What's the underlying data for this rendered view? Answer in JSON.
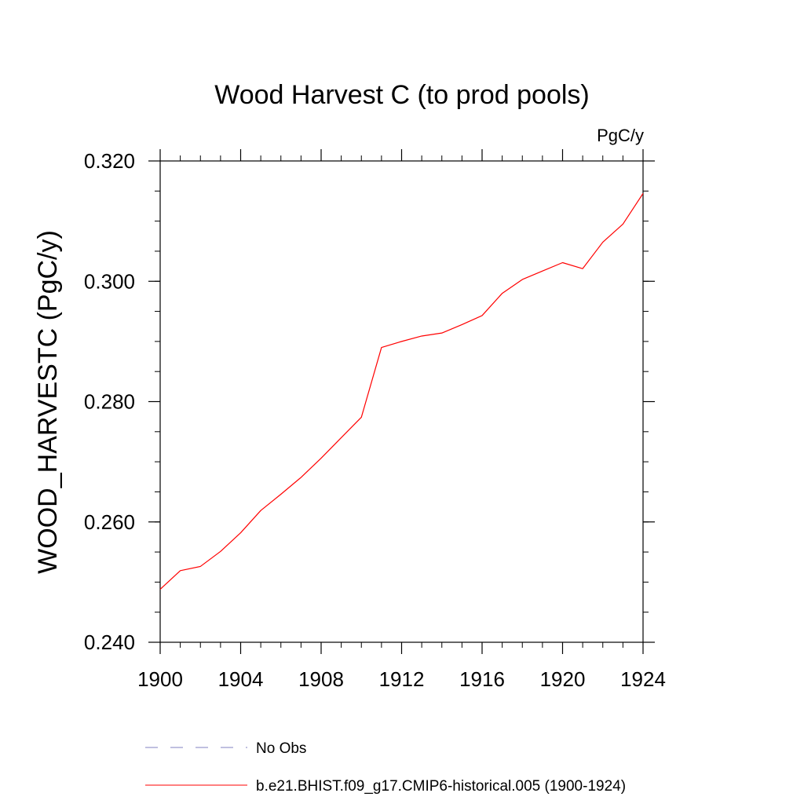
{
  "chart_data": {
    "type": "line",
    "title": "Wood Harvest C (to prod pools)",
    "units_label": "PgC/y",
    "xlabel": "",
    "ylabel": "WOOD_HARVESTC  (PgC/y)",
    "xlim": [
      1900,
      1924
    ],
    "ylim": [
      0.24,
      0.32
    ],
    "x_ticks": [
      1900,
      1904,
      1908,
      1912,
      1916,
      1920,
      1924
    ],
    "x_tick_labels": [
      "1900",
      "1904",
      "1908",
      "1912",
      "1916",
      "1920",
      "1924"
    ],
    "y_ticks": [
      0.24,
      0.26,
      0.28,
      0.3,
      0.32
    ],
    "y_tick_labels": [
      "0.240",
      "0.260",
      "0.280",
      "0.300",
      "0.320"
    ],
    "x_minor_step": 1,
    "y_minor_step": 0.005,
    "series": [
      {
        "name": "b.e21.BHIST.f09_g17.CMIP6-historical.005 (1900-1924)",
        "color": "#ff0000",
        "dash": "solid",
        "x": [
          1900,
          1901,
          1902,
          1903,
          1904,
          1905,
          1906,
          1907,
          1908,
          1909,
          1910,
          1911,
          1912,
          1913,
          1914,
          1915,
          1916,
          1917,
          1918,
          1919,
          1920,
          1921,
          1922,
          1923,
          1924
        ],
        "values": [
          0.2488,
          0.2519,
          0.2526,
          0.2551,
          0.2582,
          0.2619,
          0.2646,
          0.2674,
          0.2706,
          0.274,
          0.2774,
          0.289,
          0.29,
          0.2909,
          0.2914,
          0.2928,
          0.2943,
          0.298,
          0.3003,
          0.3017,
          0.3031,
          0.3021,
          0.3065,
          0.3095,
          0.3146
        ]
      }
    ],
    "legend": [
      {
        "label": "No Obs",
        "color": "#8080c0",
        "dash": "dashed"
      },
      {
        "label": "b.e21.BHIST.f09_g17.CMIP6-historical.005 (1900-1924)",
        "color": "#ff0000",
        "dash": "solid"
      }
    ],
    "legend_position": "bottom"
  }
}
